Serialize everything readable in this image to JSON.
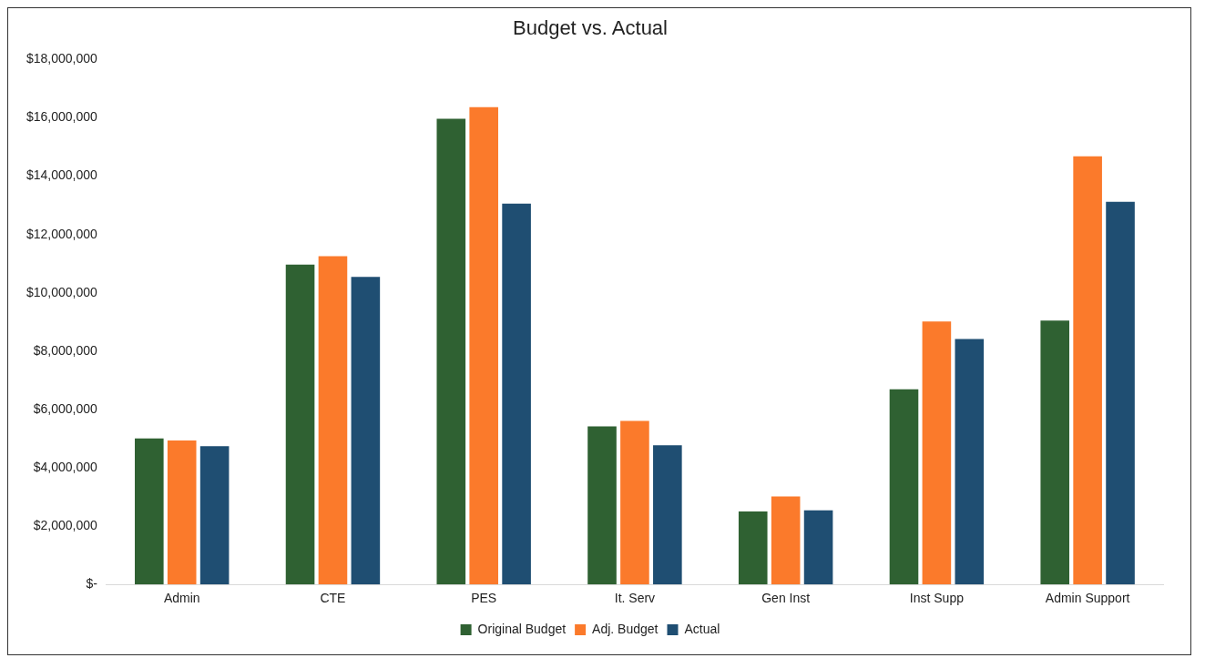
{
  "chart_data": {
    "type": "bar",
    "title": "Budget vs. Actual",
    "categories": [
      "Admin",
      "CTE",
      "PES",
      "It. Serv",
      "Gen Inst",
      "Inst Supp",
      "Admin Support"
    ],
    "series": [
      {
        "name": "Original Budget",
        "color": "#2f6132",
        "values": [
          5010000,
          10970000,
          15970000,
          5420000,
          2500000,
          6690000,
          9050000
        ]
      },
      {
        "name": "Adj. Budget",
        "color": "#fb7a2b",
        "values": [
          4940000,
          11260000,
          16370000,
          5610000,
          3020000,
          9020000,
          14680000
        ]
      },
      {
        "name": "Actual",
        "color": "#1f4e72",
        "values": [
          4740000,
          10550000,
          13060000,
          4770000,
          2540000,
          8420000,
          13120000
        ]
      }
    ],
    "ylim": [
      0,
      18000000
    ],
    "yticks": [
      {
        "value": 0,
        "label": "$-"
      },
      {
        "value": 2000000,
        "label": "$2,000,000"
      },
      {
        "value": 4000000,
        "label": "$4,000,000"
      },
      {
        "value": 6000000,
        "label": "$6,000,000"
      },
      {
        "value": 8000000,
        "label": "$8,000,000"
      },
      {
        "value": 10000000,
        "label": "$10,000,000"
      },
      {
        "value": 12000000,
        "label": "$12,000,000"
      },
      {
        "value": 14000000,
        "label": "$14,000,000"
      },
      {
        "value": 16000000,
        "label": "$16,000,000"
      },
      {
        "value": 18000000,
        "label": "$18,000,000"
      }
    ],
    "legend": "bottom"
  }
}
